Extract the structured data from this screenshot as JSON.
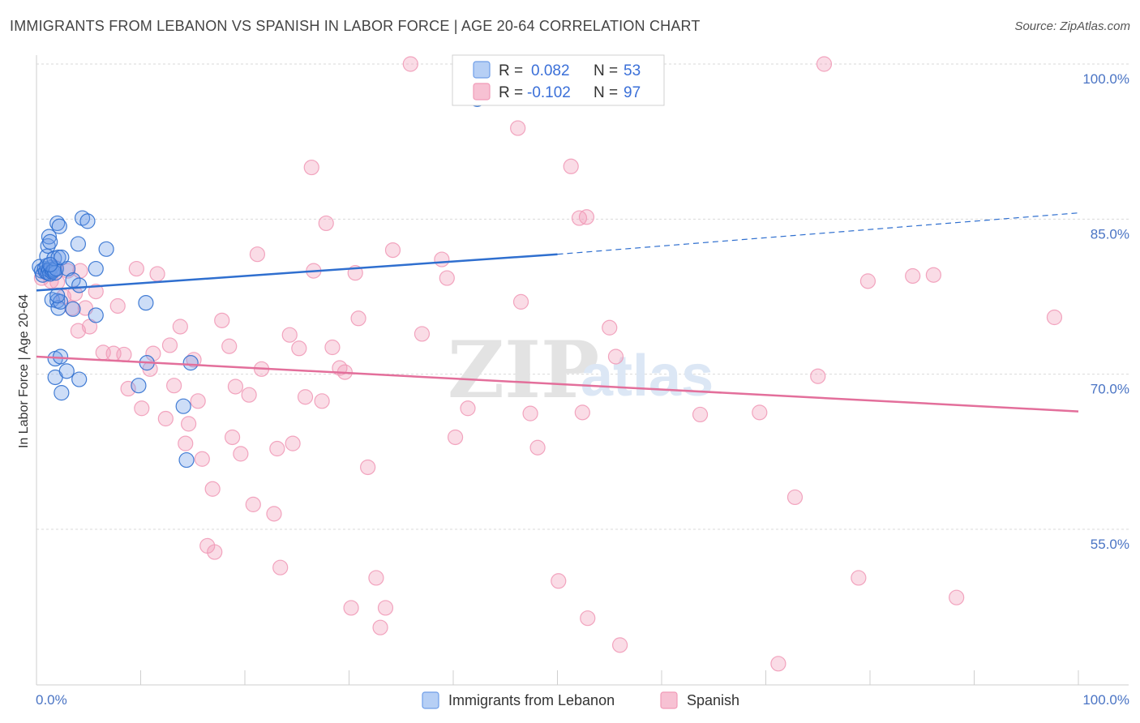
{
  "header": {
    "title": "IMMIGRANTS FROM LEBANON VS SPANISH IN LABOR FORCE | AGE 20-64 CORRELATION CHART",
    "source": "Source: ZipAtlas.com"
  },
  "watermark": {
    "zip": "ZIP",
    "atlas": "atlas"
  },
  "legend": {
    "rows": [
      {
        "r_label": "R =",
        "r_value": "0.082",
        "n_label": "N =",
        "n_value": "53"
      },
      {
        "r_label": "R =",
        "r_value": "-0.102",
        "n_label": "N =",
        "n_value": "97"
      }
    ]
  },
  "bottom_legend": {
    "items": [
      {
        "label": "Immigrants from Lebanon"
      },
      {
        "label": "Spanish"
      }
    ]
  },
  "chart_data": {
    "type": "scatter",
    "title": "IMMIGRANTS FROM LEBANON VS SPANISH IN LABOR FORCE | AGE 20-64 CORRELATION CHART",
    "ylabel": "In Labor Force | Age 20-64",
    "xlabel": "",
    "xlim": [
      0,
      100
    ],
    "ylim": [
      40,
      101
    ],
    "x_tick_labels": [
      "0.0%",
      "100.0%"
    ],
    "y_ticks": [
      100,
      85,
      70,
      55
    ],
    "y_tick_labels": [
      "100.0%",
      "85.0%",
      "70.0%",
      "55.0%"
    ],
    "grid": true,
    "legend_position": "top-center",
    "colors": {
      "lebanon": "#6f9ee8",
      "spanish": "#f19bb8",
      "lebanon_line": "#2f6fcf",
      "spanish_line": "#e36f9b",
      "tick": "#4a74c4"
    },
    "series": [
      {
        "name": "Immigrants from Lebanon",
        "r": 0.082,
        "n": 53,
        "trend": {
          "x0": 0,
          "y0": 78.1,
          "x1": 50,
          "y1": 81.6,
          "dashed_to_x": 100,
          "dashed_to_y": 85.6
        },
        "points": [
          [
            0.3,
            80.4
          ],
          [
            0.5,
            80.0
          ],
          [
            0.6,
            79.6
          ],
          [
            0.8,
            80.2
          ],
          [
            0.9,
            79.9
          ],
          [
            1.0,
            80.5
          ],
          [
            1.1,
            79.8
          ],
          [
            1.2,
            80.1
          ],
          [
            1.3,
            79.7
          ],
          [
            1.4,
            80.3
          ],
          [
            1.5,
            79.9
          ],
          [
            1.6,
            80.0
          ],
          [
            1.7,
            80.1
          ],
          [
            1.8,
            79.8
          ],
          [
            1.9,
            80.2
          ],
          [
            1.0,
            81.4
          ],
          [
            1.1,
            82.4
          ],
          [
            1.2,
            83.3
          ],
          [
            1.3,
            82.8
          ],
          [
            1.7,
            81.2
          ],
          [
            2.1,
            81.3
          ],
          [
            1.5,
            77.2
          ],
          [
            2.0,
            77.1
          ],
          [
            2.1,
            76.4
          ],
          [
            2.3,
            77.0
          ],
          [
            2.0,
            77.6
          ],
          [
            2.0,
            84.6
          ],
          [
            2.2,
            84.3
          ],
          [
            4.4,
            85.1
          ],
          [
            4.9,
            84.8
          ],
          [
            4.0,
            82.6
          ],
          [
            6.7,
            82.1
          ],
          [
            2.4,
            81.3
          ],
          [
            3.0,
            80.2
          ],
          [
            3.5,
            79.1
          ],
          [
            4.1,
            78.6
          ],
          [
            5.7,
            80.2
          ],
          [
            3.5,
            76.3
          ],
          [
            5.7,
            75.7
          ],
          [
            1.8,
            71.5
          ],
          [
            2.3,
            71.7
          ],
          [
            1.8,
            69.7
          ],
          [
            2.9,
            70.3
          ],
          [
            2.4,
            68.2
          ],
          [
            4.1,
            69.5
          ],
          [
            10.5,
            76.9
          ],
          [
            10.6,
            71.1
          ],
          [
            9.8,
            68.9
          ],
          [
            14.8,
            71.1
          ],
          [
            14.1,
            66.9
          ],
          [
            14.4,
            61.7
          ],
          [
            42.3,
            96.6
          ],
          [
            1.3,
            80.6
          ]
        ]
      },
      {
        "name": "Spanish",
        "r": -0.102,
        "n": 97,
        "trend": {
          "x0": 0,
          "y0": 71.7,
          "x1": 100,
          "y1": 66.4
        },
        "points": [
          [
            0.5,
            79.3
          ],
          [
            1.0,
            79.8
          ],
          [
            1.4,
            79.0
          ],
          [
            1.8,
            80.3
          ],
          [
            2.0,
            78.9
          ],
          [
            2.6,
            77.5
          ],
          [
            3.0,
            80.0
          ],
          [
            3.4,
            76.4
          ],
          [
            3.7,
            77.8
          ],
          [
            4.2,
            80.0
          ],
          [
            4.0,
            74.2
          ],
          [
            4.7,
            76.4
          ],
          [
            5.1,
            74.6
          ],
          [
            5.7,
            78.0
          ],
          [
            6.4,
            72.1
          ],
          [
            7.4,
            72.0
          ],
          [
            7.8,
            76.6
          ],
          [
            8.4,
            71.9
          ],
          [
            8.8,
            68.6
          ],
          [
            9.6,
            80.2
          ],
          [
            10.1,
            66.7
          ],
          [
            10.9,
            70.5
          ],
          [
            11.2,
            72.0
          ],
          [
            11.6,
            79.7
          ],
          [
            12.4,
            65.7
          ],
          [
            12.8,
            72.8
          ],
          [
            13.2,
            68.9
          ],
          [
            13.8,
            74.6
          ],
          [
            14.3,
            63.3
          ],
          [
            14.6,
            65.2
          ],
          [
            15.1,
            71.4
          ],
          [
            15.5,
            67.4
          ],
          [
            15.9,
            61.8
          ],
          [
            16.4,
            53.4
          ],
          [
            17.1,
            52.8
          ],
          [
            16.9,
            58.9
          ],
          [
            17.8,
            75.2
          ],
          [
            18.5,
            72.7
          ],
          [
            18.8,
            63.9
          ],
          [
            19.1,
            68.8
          ],
          [
            19.6,
            62.3
          ],
          [
            20.4,
            68.0
          ],
          [
            20.8,
            57.4
          ],
          [
            21.2,
            81.6
          ],
          [
            21.6,
            70.5
          ],
          [
            22.8,
            56.5
          ],
          [
            23.1,
            62.8
          ],
          [
            23.4,
            51.3
          ],
          [
            24.3,
            73.8
          ],
          [
            24.6,
            63.3
          ],
          [
            25.2,
            72.5
          ],
          [
            25.8,
            67.8
          ],
          [
            26.4,
            90.0
          ],
          [
            26.6,
            80.0
          ],
          [
            27.4,
            67.4
          ],
          [
            27.8,
            84.6
          ],
          [
            28.4,
            72.6
          ],
          [
            29.1,
            70.6
          ],
          [
            29.6,
            70.2
          ],
          [
            30.2,
            47.4
          ],
          [
            30.6,
            79.8
          ],
          [
            30.9,
            75.4
          ],
          [
            31.8,
            61.0
          ],
          [
            32.6,
            50.3
          ],
          [
            33.0,
            45.5
          ],
          [
            33.5,
            47.4
          ],
          [
            34.2,
            82.0
          ],
          [
            35.9,
            100.0
          ],
          [
            37.0,
            73.9
          ],
          [
            38.9,
            81.1
          ],
          [
            39.4,
            79.3
          ],
          [
            40.2,
            63.9
          ],
          [
            41.4,
            66.7
          ],
          [
            44.4,
            100.0
          ],
          [
            46.2,
            93.8
          ],
          [
            46.5,
            77.0
          ],
          [
            47.4,
            66.2
          ],
          [
            48.1,
            62.9
          ],
          [
            50.1,
            50.0
          ],
          [
            51.3,
            90.1
          ],
          [
            52.4,
            66.3
          ],
          [
            52.8,
            85.2
          ],
          [
            52.1,
            85.1
          ],
          [
            52.9,
            46.4
          ],
          [
            55.0,
            74.5
          ],
          [
            55.6,
            71.7
          ],
          [
            56.0,
            43.8
          ],
          [
            63.7,
            66.1
          ],
          [
            69.4,
            66.3
          ],
          [
            71.2,
            42.0
          ],
          [
            72.8,
            58.1
          ],
          [
            75.0,
            69.8
          ],
          [
            75.6,
            100.0
          ],
          [
            78.9,
            50.3
          ],
          [
            79.8,
            79.0
          ],
          [
            84.1,
            79.5
          ],
          [
            86.1,
            79.6
          ],
          [
            88.3,
            48.4
          ],
          [
            97.7,
            75.5
          ]
        ]
      }
    ]
  }
}
